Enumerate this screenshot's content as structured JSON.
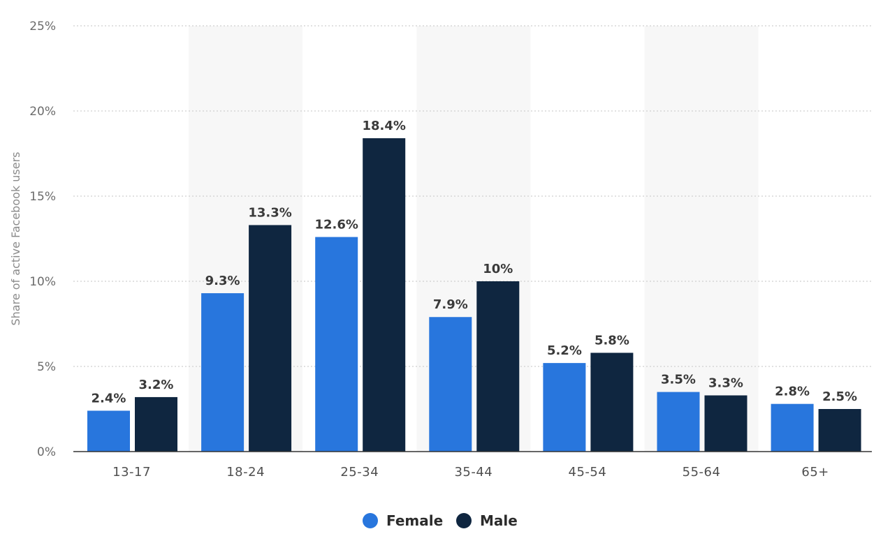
{
  "chart_data": {
    "type": "bar",
    "categories": [
      "13-17",
      "18-24",
      "25-34",
      "35-44",
      "45-54",
      "55-64",
      "65+"
    ],
    "series": [
      {
        "name": "Female",
        "values": [
          2.4,
          9.3,
          12.6,
          7.9,
          5.2,
          3.5,
          2.8
        ],
        "labels": [
          "2.4%",
          "9.3%",
          "12.6%",
          "7.9%",
          "5.2%",
          "3.5%",
          "2.8%"
        ],
        "color": "#2876dd"
      },
      {
        "name": "Male",
        "values": [
          3.2,
          13.3,
          18.4,
          10,
          5.8,
          3.3,
          2.5
        ],
        "labels": [
          "3.2%",
          "13.3%",
          "18.4%",
          "10%",
          "5.8%",
          "3.3%",
          "2.5%"
        ],
        "color": "#0f2640"
      }
    ],
    "title": "",
    "xlabel": "",
    "ylabel": "Share of active Facebook users",
    "ylim": [
      0,
      25
    ],
    "yticks": [
      0,
      5,
      10,
      15,
      20,
      25
    ],
    "ytick_labels": [
      "0%",
      "5%",
      "10%",
      "15%",
      "20%",
      "25%"
    ],
    "grid": true,
    "legend": "bottom-center",
    "alternating_band_color": "#f7f7f7",
    "gridline_color": "#cfcfcf",
    "axis_color": "#333333"
  }
}
